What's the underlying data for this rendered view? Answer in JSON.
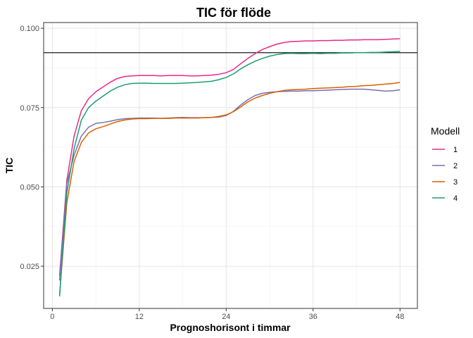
{
  "chart_data": {
    "type": "line",
    "title": "TIC för flöde",
    "xlabel": "Prognoshorisont i timmar",
    "ylabel": "TIC",
    "xlim": [
      -1.2,
      50.4
    ],
    "ylim": [
      0.0117,
      0.1018
    ],
    "xticks": [
      0,
      12,
      24,
      36,
      48
    ],
    "yticks": [
      0.025,
      0.05,
      0.075,
      0.1
    ],
    "ytick_labels": [
      "0.025",
      "0.050",
      "0.075",
      "0.100"
    ],
    "grid": true,
    "legend": {
      "title": "Modell",
      "position": "right"
    },
    "hline": {
      "y": 0.0923,
      "color": "#000000"
    },
    "x": [
      1,
      2,
      3,
      4,
      5,
      6,
      7,
      8,
      9,
      10,
      11,
      12,
      13,
      14,
      15,
      16,
      17,
      18,
      19,
      20,
      21,
      22,
      23,
      24,
      25,
      26,
      27,
      28,
      29,
      30,
      31,
      32,
      33,
      34,
      35,
      36,
      37,
      38,
      39,
      40,
      41,
      42,
      43,
      44,
      45,
      46,
      47,
      48
    ],
    "series": [
      {
        "name": "1",
        "color": "#e7298a",
        "values": [
          0.022,
          0.052,
          0.066,
          0.074,
          0.0778,
          0.08,
          0.0815,
          0.083,
          0.0842,
          0.0848,
          0.085,
          0.0851,
          0.0851,
          0.0851,
          0.085,
          0.0851,
          0.0851,
          0.0851,
          0.085,
          0.085,
          0.0851,
          0.0852,
          0.0855,
          0.086,
          0.087,
          0.0888,
          0.0905,
          0.092,
          0.0933,
          0.0942,
          0.095,
          0.0955,
          0.0958,
          0.0959,
          0.096,
          0.096,
          0.0961,
          0.0961,
          0.0962,
          0.0962,
          0.0963,
          0.0963,
          0.0964,
          0.0964,
          0.0964,
          0.0965,
          0.0966,
          0.0967
        ]
      },
      {
        "name": "2",
        "color": "#7570b3",
        "values": [
          0.0205,
          0.051,
          0.06,
          0.066,
          0.0688,
          0.07,
          0.0703,
          0.0707,
          0.0712,
          0.0715,
          0.0716,
          0.0717,
          0.0717,
          0.0717,
          0.0716,
          0.0717,
          0.0718,
          0.0719,
          0.0718,
          0.0718,
          0.0718,
          0.0719,
          0.072,
          0.0725,
          0.0738,
          0.0758,
          0.0775,
          0.0788,
          0.0795,
          0.0798,
          0.08,
          0.0801,
          0.0802,
          0.0802,
          0.0803,
          0.0803,
          0.0804,
          0.0805,
          0.0806,
          0.0807,
          0.0808,
          0.0808,
          0.0808,
          0.0806,
          0.0804,
          0.0802,
          0.0803,
          0.0806
        ]
      },
      {
        "name": "3",
        "color": "#d95f02",
        "values": [
          0.016,
          0.045,
          0.058,
          0.064,
          0.067,
          0.0683,
          0.069,
          0.0698,
          0.0706,
          0.0711,
          0.0714,
          0.0715,
          0.0715,
          0.0716,
          0.0716,
          0.0716,
          0.0717,
          0.0717,
          0.0717,
          0.0717,
          0.0718,
          0.0719,
          0.0722,
          0.0727,
          0.0737,
          0.0752,
          0.0768,
          0.078,
          0.0788,
          0.0795,
          0.08,
          0.0804,
          0.0806,
          0.0807,
          0.0808,
          0.081,
          0.0811,
          0.0812,
          0.0813,
          0.0814,
          0.0816,
          0.0817,
          0.0819,
          0.082,
          0.0822,
          0.0824,
          0.0826,
          0.0829
        ]
      },
      {
        "name": "4",
        "color": "#1b9e77",
        "values": [
          0.0155,
          0.048,
          0.062,
          0.071,
          0.075,
          0.077,
          0.0786,
          0.0802,
          0.0814,
          0.0822,
          0.0826,
          0.0827,
          0.0827,
          0.0826,
          0.0826,
          0.0826,
          0.0826,
          0.0827,
          0.0828,
          0.0829,
          0.0831,
          0.0833,
          0.0838,
          0.0845,
          0.0856,
          0.0872,
          0.0885,
          0.0896,
          0.0905,
          0.0912,
          0.0917,
          0.092,
          0.0921,
          0.092,
          0.092,
          0.0921,
          0.092,
          0.0921,
          0.0921,
          0.0922,
          0.0922,
          0.0923,
          0.0923,
          0.0924,
          0.0924,
          0.0925,
          0.0926,
          0.0927
        ]
      }
    ]
  }
}
